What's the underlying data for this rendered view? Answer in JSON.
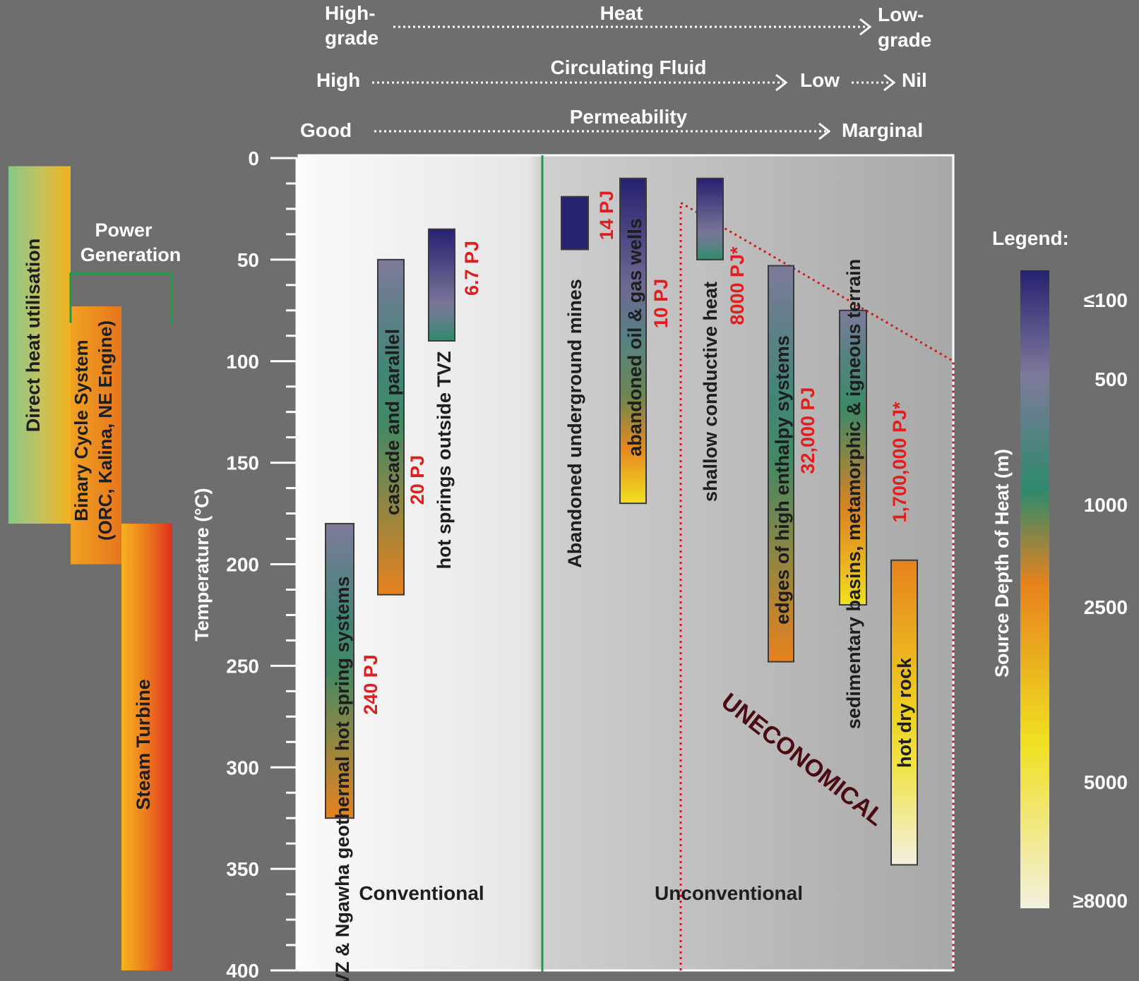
{
  "header": {
    "heat": {
      "left": [
        "High-",
        "grade"
      ],
      "label": "Heat",
      "right": [
        "Low-",
        "grade"
      ]
    },
    "fluid": {
      "left": "High",
      "label": "Circulating Fluid",
      "mid": "Low",
      "right": "Nil"
    },
    "permeability": {
      "left": "Good",
      "label": "Permeability",
      "right": "Marginal"
    }
  },
  "applications": {
    "direct_heat": "Direct heat utilisation",
    "power_generation": [
      "Power",
      "Generation"
    ],
    "binary_cycle": [
      "Binary Cycle System",
      "(ORC, Kalina, NE Engine)"
    ],
    "steam_turbine": "Steam Turbine",
    "ranges": {
      "direct_heat": [
        4,
        180
      ],
      "binary_cycle": [
        73,
        200
      ],
      "steam_turbine": [
        180,
        400
      ],
      "power_bracket_temp": 68
    }
  },
  "axis": {
    "label": "Temperature (°C)",
    "min": 0,
    "max": 400,
    "ticks": [
      0,
      50,
      100,
      150,
      200,
      250,
      300,
      350,
      400
    ],
    "minor_step": 12.5
  },
  "regions": {
    "conventional": "Conventional",
    "unconventional": "Unconventional",
    "uneconomical": "UNECONOMICAL",
    "divider_color": "#1f9a4a",
    "uneconomical_color": "#cc1a1a"
  },
  "resources": [
    {
      "label": "TVZ & Ngawha geothermal hot spring systems",
      "energy": "240 PJ",
      "range": [
        180,
        325
      ],
      "depth": [
        500,
        2500
      ]
    },
    {
      "label": "cascade and parallel",
      "energy": "20 PJ",
      "range": [
        50,
        215
      ],
      "depth": [
        500,
        2500
      ]
    },
    {
      "label": "hot springs outside TVZ",
      "energy": "6.7 PJ",
      "range": [
        35,
        90
      ],
      "depth": [
        100,
        1000
      ]
    },
    {
      "label": "Abandoned underground mines",
      "energy": "14 PJ",
      "range": [
        19,
        45
      ],
      "depth": [
        100,
        100
      ]
    },
    {
      "label": "abandoned oil & gas wells",
      "energy": "10 PJ",
      "range": [
        10,
        170
      ],
      "depth": [
        100,
        5000
      ]
    },
    {
      "label": "shallow conductive heat",
      "energy": "8000 PJ*",
      "range": [
        10,
        50
      ],
      "depth": [
        100,
        1000
      ]
    },
    {
      "label": "edges of high enthalpy systems",
      "energy": "32,000 PJ",
      "range": [
        53,
        248
      ],
      "depth": [
        500,
        2500
      ]
    },
    {
      "label": "sedimentary basins, metamorphic & igneous terrain",
      "energy": "1,700,000 PJ*",
      "range": [
        75,
        220
      ],
      "depth": [
        500,
        5000
      ]
    },
    {
      "label": "hot dry rock",
      "energy": "",
      "range": [
        198,
        348
      ],
      "depth": [
        2500,
        8000
      ]
    }
  ],
  "legend": {
    "title": "Legend:",
    "axis_label": "Source Depth of Heat (m)",
    "ticks": [
      "≤100",
      "500",
      "1000",
      "2500",
      "5000",
      "≥8000"
    ],
    "colors": [
      "#262170",
      "#7e7a9a",
      "#2e8a6c",
      "#e6821e",
      "#f0e020",
      "#f2f0e0"
    ]
  },
  "colors": {
    "background": "#6e6e6e",
    "energy_text": "#e01e1e",
    "label_text": "#1e1e1e",
    "header_text": "#ffffff",
    "uneconomical_text": "#4a0c12"
  }
}
